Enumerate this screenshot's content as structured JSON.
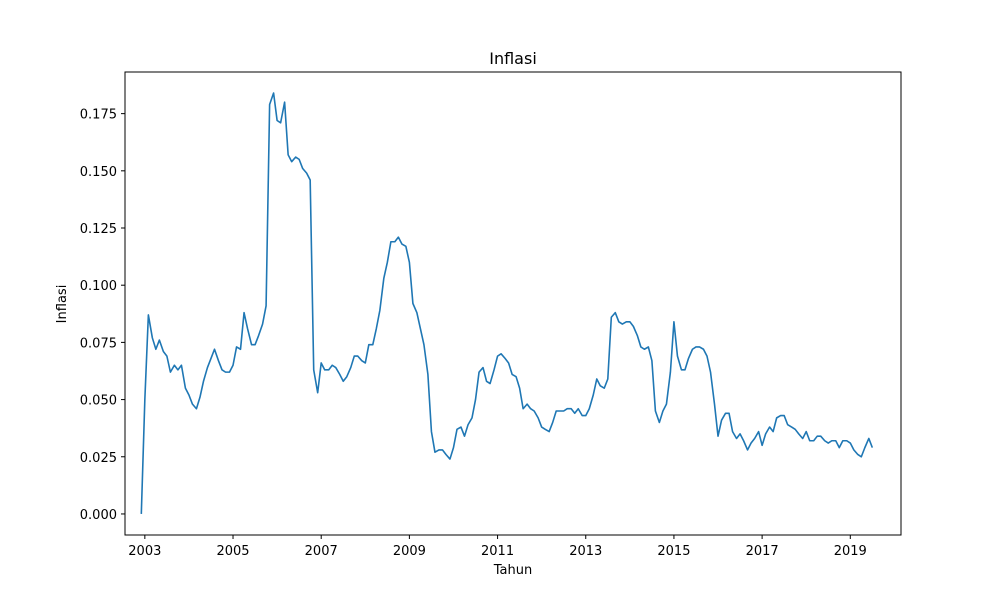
{
  "chart_data": {
    "type": "line",
    "title": "Inflasi",
    "xlabel": "Tahun",
    "ylabel": "Inflasi",
    "xlim": [
      2002.55,
      2020.15
    ],
    "ylim": [
      -0.0092,
      0.1932
    ],
    "xticks": [
      2003,
      2005,
      2007,
      2009,
      2011,
      2013,
      2015,
      2017,
      2019
    ],
    "xtick_labels": [
      "2003",
      "2005",
      "2007",
      "2009",
      "2011",
      "2013",
      "2015",
      "2017",
      "2019"
    ],
    "yticks": [
      0.0,
      0.025,
      0.05,
      0.075,
      0.1,
      0.125,
      0.15,
      0.175
    ],
    "ytick_labels": [
      "0.000",
      "0.025",
      "0.050",
      "0.075",
      "0.100",
      "0.125",
      "0.150",
      "0.175"
    ],
    "grid": false,
    "line_color": "#1f77b4",
    "series": [
      {
        "x": [
          2002.92,
          2003.0,
          2003.08,
          2003.17,
          2003.25,
          2003.33,
          2003.42,
          2003.5,
          2003.58,
          2003.67,
          2003.75,
          2003.83,
          2003.92,
          2004.0,
          2004.08,
          2004.17,
          2004.25,
          2004.33,
          2004.42,
          2004.5,
          2004.58,
          2004.67,
          2004.75,
          2004.83,
          2004.92,
          2005.0,
          2005.08,
          2005.17,
          2005.25,
          2005.33,
          2005.42,
          2005.5,
          2005.58,
          2005.67,
          2005.75,
          2005.83,
          2005.92,
          2006.0,
          2006.08,
          2006.17,
          2006.25,
          2006.33,
          2006.42,
          2006.5,
          2006.58,
          2006.67,
          2006.75,
          2006.83,
          2006.92,
          2007.0,
          2007.08,
          2007.17,
          2007.25,
          2007.33,
          2007.42,
          2007.5,
          2007.58,
          2007.67,
          2007.75,
          2007.83,
          2007.92,
          2008.0,
          2008.08,
          2008.17,
          2008.25,
          2008.33,
          2008.42,
          2008.5,
          2008.58,
          2008.67,
          2008.75,
          2008.83,
          2008.92,
          2009.0,
          2009.08,
          2009.17,
          2009.25,
          2009.33,
          2009.42,
          2009.5,
          2009.58,
          2009.67,
          2009.75,
          2009.83,
          2009.92,
          2010.0,
          2010.08,
          2010.17,
          2010.25,
          2010.33,
          2010.42,
          2010.5,
          2010.58,
          2010.67,
          2010.75,
          2010.83,
          2010.92,
          2011.0,
          2011.08,
          2011.17,
          2011.25,
          2011.33,
          2011.42,
          2011.5,
          2011.58,
          2011.67,
          2011.75,
          2011.83,
          2011.92,
          2012.0,
          2012.08,
          2012.17,
          2012.25,
          2012.33,
          2012.42,
          2012.5,
          2012.58,
          2012.67,
          2012.75,
          2012.83,
          2012.92,
          2013.0,
          2013.08,
          2013.17,
          2013.25,
          2013.33,
          2013.42,
          2013.5,
          2013.58,
          2013.67,
          2013.75,
          2013.83,
          2013.92,
          2014.0,
          2014.08,
          2014.17,
          2014.25,
          2014.33,
          2014.42,
          2014.5,
          2014.58,
          2014.67,
          2014.75,
          2014.83,
          2014.92,
          2015.0,
          2015.08,
          2015.17,
          2015.25,
          2015.33,
          2015.42,
          2015.5,
          2015.58,
          2015.67,
          2015.75,
          2015.83,
          2015.92,
          2016.0,
          2016.08,
          2016.17,
          2016.25,
          2016.33,
          2016.42,
          2016.5,
          2016.58,
          2016.67,
          2016.75,
          2016.83,
          2016.92,
          2017.0,
          2017.08,
          2017.17,
          2017.25,
          2017.33,
          2017.42,
          2017.5,
          2017.58,
          2017.67,
          2017.75,
          2017.83,
          2017.92,
          2018.0,
          2018.08,
          2018.17,
          2018.25,
          2018.33,
          2018.42,
          2018.5,
          2018.58,
          2018.67,
          2018.75,
          2018.83,
          2018.92,
          2019.0,
          2019.08,
          2019.17,
          2019.25,
          2019.33,
          2019.42,
          2019.5
        ],
        "values": [
          0.0,
          0.05,
          0.087,
          0.077,
          0.072,
          0.076,
          0.071,
          0.069,
          0.062,
          0.065,
          0.063,
          0.065,
          0.055,
          0.052,
          0.048,
          0.046,
          0.051,
          0.058,
          0.064,
          0.068,
          0.072,
          0.067,
          0.063,
          0.062,
          0.062,
          0.065,
          0.073,
          0.072,
          0.088,
          0.081,
          0.074,
          0.074,
          0.078,
          0.083,
          0.091,
          0.179,
          0.184,
          0.172,
          0.171,
          0.18,
          0.157,
          0.154,
          0.156,
          0.155,
          0.151,
          0.149,
          0.146,
          0.063,
          0.053,
          0.066,
          0.063,
          0.063,
          0.065,
          0.064,
          0.061,
          0.058,
          0.06,
          0.064,
          0.069,
          0.069,
          0.067,
          0.066,
          0.074,
          0.074,
          0.081,
          0.089,
          0.103,
          0.11,
          0.119,
          0.119,
          0.121,
          0.118,
          0.117,
          0.11,
          0.092,
          0.088,
          0.081,
          0.074,
          0.061,
          0.036,
          0.027,
          0.028,
          0.028,
          0.026,
          0.024,
          0.029,
          0.037,
          0.038,
          0.034,
          0.039,
          0.042,
          0.05,
          0.062,
          0.064,
          0.058,
          0.057,
          0.063,
          0.069,
          0.07,
          0.068,
          0.066,
          0.061,
          0.06,
          0.055,
          0.046,
          0.048,
          0.046,
          0.045,
          0.042,
          0.038,
          0.037,
          0.036,
          0.04,
          0.045,
          0.045,
          0.045,
          0.046,
          0.046,
          0.044,
          0.046,
          0.043,
          0.043,
          0.046,
          0.052,
          0.059,
          0.056,
          0.055,
          0.059,
          0.086,
          0.088,
          0.084,
          0.083,
          0.084,
          0.084,
          0.082,
          0.078,
          0.073,
          0.072,
          0.073,
          0.067,
          0.045,
          0.04,
          0.045,
          0.048,
          0.062,
          0.084,
          0.069,
          0.063,
          0.063,
          0.068,
          0.072,
          0.073,
          0.073,
          0.072,
          0.069,
          0.062,
          0.048,
          0.034,
          0.041,
          0.044,
          0.044,
          0.036,
          0.033,
          0.035,
          0.032,
          0.028,
          0.031,
          0.033,
          0.036,
          0.03,
          0.035,
          0.038,
          0.036,
          0.042,
          0.043,
          0.043,
          0.039,
          0.038,
          0.037,
          0.035,
          0.033,
          0.036,
          0.032,
          0.032,
          0.034,
          0.034,
          0.032,
          0.031,
          0.032,
          0.032,
          0.029,
          0.032,
          0.032,
          0.031,
          0.028,
          0.026,
          0.025,
          0.029,
          0.033,
          0.029
        ]
      }
    ]
  }
}
